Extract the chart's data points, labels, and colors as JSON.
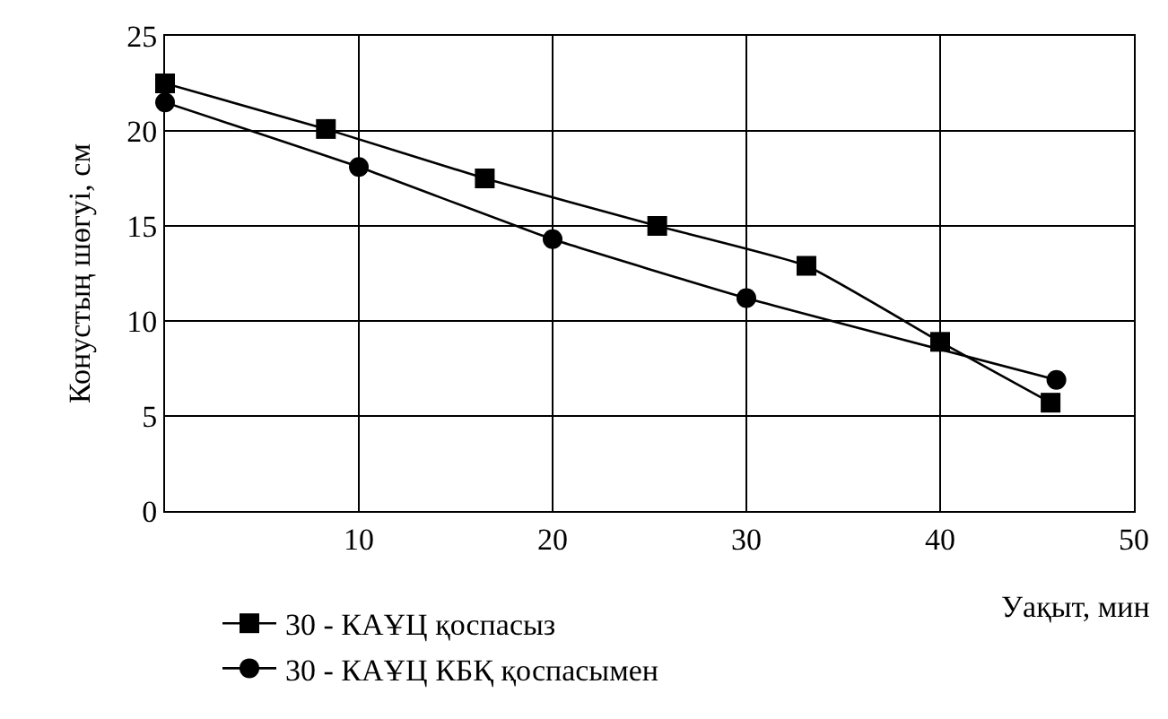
{
  "chart_data": {
    "type": "line",
    "xlabel": "Уақыт, мин",
    "ylabel": "Конустың шөгуі, см",
    "xlim": [
      0,
      50
    ],
    "ylim": [
      0,
      25
    ],
    "xticks": [
      10,
      20,
      30,
      40,
      50
    ],
    "yticks": [
      0,
      5,
      10,
      15,
      20,
      25
    ],
    "grid": true,
    "legend": "bottom left",
    "line_style": "solid",
    "series": [
      {
        "name": "30 - КАҰЦ қоспасыз",
        "color": "#000000",
        "marker": "square",
        "x": [
          0,
          8.3,
          16.5,
          25.4,
          33.1,
          40,
          45.7
        ],
        "values": [
          22.5,
          20.1,
          17.5,
          15.0,
          12.9,
          8.9,
          5.7
        ]
      },
      {
        "name": "30 - КАҰЦ КБҚ қоспасымен",
        "color": "#000000",
        "marker": "circle",
        "x": [
          0,
          10,
          20,
          30,
          46
        ],
        "values": [
          21.5,
          18.1,
          14.3,
          11.2,
          6.9
        ]
      }
    ]
  }
}
